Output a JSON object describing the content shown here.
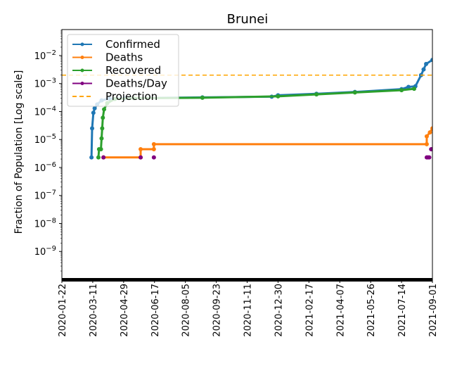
{
  "chart_data": {
    "type": "line",
    "title": "Brunei",
    "ylabel": "Fraction of Population [Log scale]",
    "xlabel": "",
    "yscale": "log",
    "ylim": [
      1e-10,
      0.085
    ],
    "xlim": [
      "2020-01-22",
      "2021-09-01"
    ],
    "xticks": [
      "2020-01-22",
      "2020-03-11",
      "2020-04-29",
      "2020-06-17",
      "2020-08-05",
      "2020-09-23",
      "2020-11-11",
      "2020-12-30",
      "2021-02-17",
      "2021-04-07",
      "2021-05-26",
      "2021-07-14",
      "2021-09-01"
    ],
    "yticks": [
      {
        "v": 1e-09,
        "b": "10",
        "e": "−9"
      },
      {
        "v": 1e-08,
        "b": "10",
        "e": "−8"
      },
      {
        "v": 1e-07,
        "b": "10",
        "e": "−7"
      },
      {
        "v": 1e-06,
        "b": "10",
        "e": "−6"
      },
      {
        "v": 1e-05,
        "b": "10",
        "e": "−5"
      },
      {
        "v": 0.0001,
        "b": "10",
        "e": "−4"
      },
      {
        "v": 0.001,
        "b": "10",
        "e": "−3"
      },
      {
        "v": 0.01,
        "b": "10",
        "e": "−2"
      }
    ],
    "legend": "upper-left",
    "series": [
      {
        "name": "Confirmed",
        "color": "#1f77b4",
        "style": "line-marker",
        "points": [
          [
            "2020-03-09",
            2.3e-06
          ],
          [
            "2020-03-10",
            2.5e-05
          ],
          [
            "2020-03-12",
            9e-05
          ],
          [
            "2020-03-14",
            0.00013
          ],
          [
            "2020-03-18",
            0.00018
          ],
          [
            "2020-03-25",
            0.00025
          ],
          [
            "2020-04-06",
            0.00029
          ],
          [
            "2020-05-01",
            0.0003
          ],
          [
            "2020-09-01",
            0.00032
          ],
          [
            "2020-12-20",
            0.00034
          ],
          [
            "2020-12-30",
            0.00038
          ],
          [
            "2021-03-01",
            0.00043
          ],
          [
            "2021-05-01",
            0.0005
          ],
          [
            "2021-07-14",
            0.00063
          ],
          [
            "2021-07-25",
            0.00076
          ],
          [
            "2021-08-05",
            0.0008
          ],
          [
            "2021-08-14",
            0.002
          ],
          [
            "2021-08-18",
            0.0032
          ],
          [
            "2021-08-22",
            0.005
          ],
          [
            "2021-09-01",
            0.007
          ]
        ]
      },
      {
        "name": "Deaths",
        "color": "#ff7f0e",
        "style": "line-marker",
        "points": [
          [
            "2020-03-28",
            2.3e-06
          ],
          [
            "2020-05-26",
            2.3e-06
          ],
          [
            "2020-05-26",
            4.5e-06
          ],
          [
            "2020-06-16",
            4.5e-06
          ],
          [
            "2020-06-16",
            6.8e-06
          ],
          [
            "2021-08-23",
            6.8e-06
          ],
          [
            "2021-08-23",
            1.3e-05
          ],
          [
            "2021-08-28",
            1.8e-05
          ],
          [
            "2021-09-01",
            2.5e-05
          ]
        ]
      },
      {
        "name": "Recovered",
        "color": "#2ca02c",
        "style": "line-marker",
        "points": [
          [
            "2020-03-20",
            2.3e-06
          ],
          [
            "2020-03-21",
            4.5e-06
          ],
          [
            "2020-03-24",
            4.5e-06
          ],
          [
            "2020-03-25",
            1.1e-05
          ],
          [
            "2020-03-26",
            2.5e-05
          ],
          [
            "2020-03-27",
            6e-05
          ],
          [
            "2020-03-29",
            0.00012
          ],
          [
            "2020-04-03",
            0.0002
          ],
          [
            "2020-04-15",
            0.00028
          ],
          [
            "2020-05-15",
            0.0003
          ],
          [
            "2020-09-01",
            0.00031
          ],
          [
            "2020-12-30",
            0.00035
          ],
          [
            "2021-03-01",
            0.00041
          ],
          [
            "2021-05-01",
            0.00048
          ],
          [
            "2021-07-14",
            0.00058
          ],
          [
            "2021-08-03",
            0.00065
          ]
        ]
      },
      {
        "name": "Deaths/Day",
        "color": "#800080",
        "style": "marker",
        "points": [
          [
            "2020-03-28",
            2.3e-06
          ],
          [
            "2020-05-26",
            2.3e-06
          ],
          [
            "2020-06-16",
            2.3e-06
          ],
          [
            "2021-08-23",
            2.3e-06
          ],
          [
            "2021-08-25",
            2.3e-06
          ],
          [
            "2021-08-27",
            2.3e-06
          ],
          [
            "2021-08-30",
            4.5e-06
          ],
          [
            "2021-09-01",
            4.5e-06
          ]
        ]
      },
      {
        "name": "Projection",
        "color": "#ffa500",
        "style": "dashed",
        "value": 0.002
      }
    ]
  }
}
